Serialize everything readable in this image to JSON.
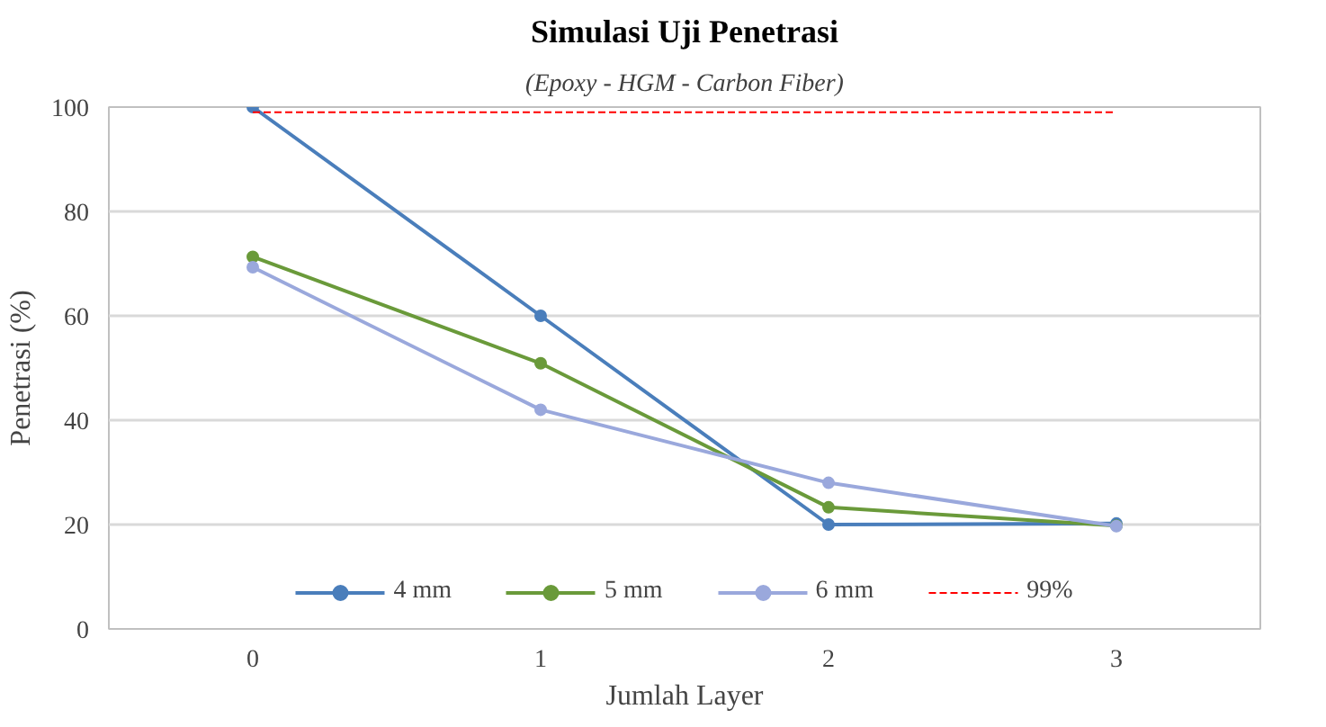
{
  "chart_data": {
    "type": "line",
    "title": "Simulasi Uji Penetrasi",
    "subtitle": "(Epoxy - HGM - Carbon Fiber)",
    "xlabel": "Jumlah Layer",
    "ylabel": "Penetrasi (%)",
    "categories": [
      "0",
      "1",
      "2",
      "3"
    ],
    "series": [
      {
        "name": "4 mm",
        "color": "#4a7ebb",
        "values": [
          100,
          60,
          20,
          20.2
        ]
      },
      {
        "name": "5 mm",
        "color": "#6a9a3a",
        "values": [
          71.3,
          50.9,
          23.3,
          19.8
        ]
      },
      {
        "name": "6 mm",
        "color": "#9aa8dc",
        "values": [
          69.3,
          42,
          28,
          19.7
        ]
      },
      {
        "name": "99%",
        "color": "#ff0000",
        "values": [
          99,
          99,
          99,
          99
        ],
        "line_style": "dashed",
        "marker": "none"
      }
    ],
    "ylim": [
      0,
      100
    ],
    "yticks": [
      0,
      20,
      40,
      60,
      80,
      100
    ],
    "grid": "y",
    "legend": "bottom",
    "marker": "circle",
    "line_style": "solid"
  }
}
